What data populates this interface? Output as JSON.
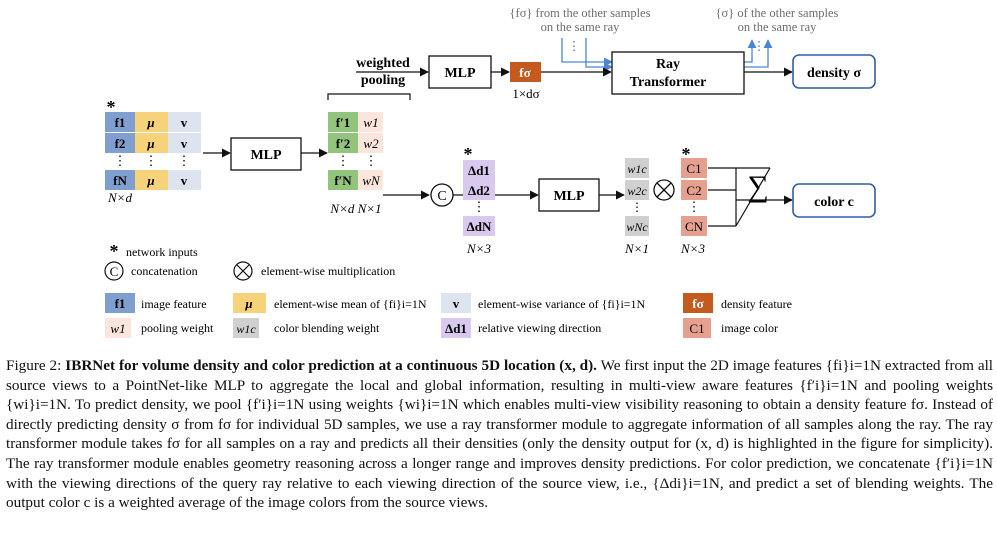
{
  "figure": {
    "top_note_left_1": "{fσ} from the other samples",
    "top_note_left_2": "on the same ray",
    "top_note_right_1": "{σ} of the other samples",
    "top_note_right_2": "on the same ray",
    "weighted_pooling_1": "weighted",
    "weighted_pooling_2": "pooling",
    "mlp": "MLP",
    "f_sigma": "fσ",
    "one_x_d_sigma": "1×dσ",
    "ray_transformer_1": "Ray",
    "ray_transformer_2": "Transformer",
    "density_out": "density σ",
    "color_out": "color  c",
    "input_rows": [
      {
        "f": "f1",
        "mu": "μ",
        "v": "v"
      },
      {
        "f": "f2",
        "mu": "μ",
        "v": "v"
      },
      {
        "f": "fN",
        "mu": "μ",
        "v": "v"
      }
    ],
    "pooled_rows": [
      {
        "f": "f′1",
        "w": "w1"
      },
      {
        "f": "f′2",
        "w": "w2"
      },
      {
        "f": "f′N",
        "w": "wN"
      }
    ],
    "delta_rows": [
      "Δd1",
      "Δd2",
      "ΔdN"
    ],
    "blend_rows": [
      "w1c",
      "w2c",
      "wNc"
    ],
    "color_rows": [
      "C1",
      "C2",
      "CN"
    ],
    "dims_input": "N×d",
    "dims_pooled": "N×d  N×1",
    "dims_delta": "N×3",
    "dims_blend": "N×1",
    "dims_color": "N×3",
    "star": "*",
    "vdots": "⋮",
    "sum": "∑",
    "concat_symbol": "C",
    "mult_symbol": "⊗"
  },
  "legend": {
    "network_inputs": "network inputs",
    "concatenation": "concatenation",
    "elementwise_mult": "element-wise multiplication",
    "fi_label": "image feature",
    "mu_label": "element-wise mean of {fi}i=1N",
    "v_label": "element-wise variance of {fi}i=1N",
    "fsigma_label": "density feature",
    "wi_label": "pooling weight",
    "wic_label": "color blending weight",
    "ddi_label": "relative viewing direction",
    "ci_label": "image color"
  },
  "caption": {
    "fig_label": "Figure 2:",
    "title": "IBRNet for volume density and color prediction at a continuous 5D location (x, d).",
    "body": "We first input the 2D image features {fi}i=1N extracted from all source views to a PointNet-like MLP to aggregate the local and global information, resulting in multi-view aware features {f′i}i=1N and pooling weights {wi}i=1N. To predict density, we pool {f′i}i=1N using weights {wi}i=1N which enables multi-view visibility reasoning to obtain a density feature fσ. Instead of directly predicting density σ from fσ for individual 5D samples, we use a ray transformer module to aggregate information of all samples along the ray. The ray transformer module takes fσ for all samples on a ray and predicts all their densities (only the density output for (x, d) is highlighted in the figure for simplicity). The ray transformer module enables geometry reasoning across a longer range and improves density predictions. For color prediction, we concatenate {f′i}i=1N with the viewing directions of the query ray relative to each viewing direction of the source view, i.e., {Δdi}i=1N, and predict a set of blending weights. The output color c is a weighted average of the image colors from the source views."
  },
  "colors": {
    "blue": "#7f9fd1",
    "yellow": "#f6d37a",
    "lightblue": "#dde4f0",
    "green": "#93c47d",
    "pink": "#fbe5dc",
    "purple": "#d9c9ee",
    "gray": "#d0d0d0",
    "salmon": "#e5a08f",
    "orange": "#c55a1e",
    "arrow_blue": "#4a86d4",
    "note_gray": "#6d6d6d"
  }
}
